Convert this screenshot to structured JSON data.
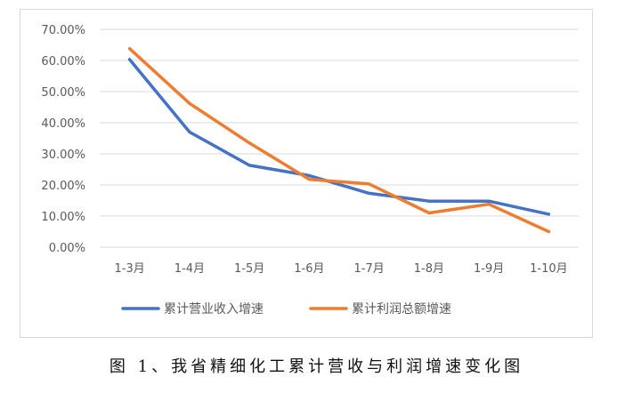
{
  "caption": "图 1、我省精细化工累计营收与利润增速变化图",
  "chart_data": {
    "type": "line",
    "categories": [
      "1-3月",
      "1-4月",
      "1-5月",
      "1-6月",
      "1-7月",
      "1-8月",
      "1-9月",
      "1-10月"
    ],
    "series": [
      {
        "name": "累计营业收入增速",
        "color": "#4472c4",
        "values": [
          60.3,
          37.0,
          26.3,
          23.0,
          17.3,
          14.8,
          14.8,
          10.6
        ]
      },
      {
        "name": "累计利润总额增速",
        "color": "#ed7d31",
        "values": [
          63.8,
          46.2,
          33.5,
          21.8,
          20.3,
          11.0,
          13.8,
          5.0
        ]
      }
    ],
    "ylim": [
      0,
      70
    ],
    "yticks": [
      "0.00%",
      "10.00%",
      "20.00%",
      "30.00%",
      "40.00%",
      "50.00%",
      "60.00%",
      "70.00%"
    ],
    "grid": true,
    "legend": "bottom",
    "xlabel": "",
    "ylabel": "",
    "title": ""
  }
}
